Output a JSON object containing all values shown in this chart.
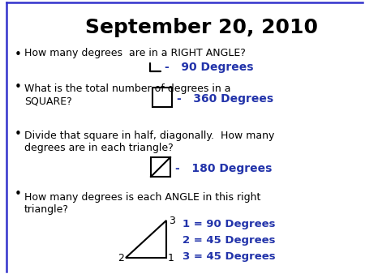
{
  "title": "September 20, 2010",
  "bg_color": "#ffffff",
  "title_color": "#000000",
  "title_fontsize": 18,
  "answer_color": "#2233aa",
  "bullet_color": "#000000",
  "text_color": "#000000",
  "border_color": "#3333cc",
  "bullet_points": [
    "How many degrees  are in a RIGHT ANGLE?",
    "What is the total number of degrees in a\nSQUARE?",
    "Divide that square in half, diagonally.  How many\ndegrees are in each triangle?",
    "How many degrees is each ANGLE in this right\ntriangle?"
  ],
  "answers": [
    "-   90 Degrees",
    "-   360 Degrees",
    "-   180 Degrees",
    "1 = 90 Degrees\n2 = 45 Degrees\n3 = 45 Degrees"
  ],
  "fig_width": 4.5,
  "fig_height": 3.38,
  "dpi": 100
}
